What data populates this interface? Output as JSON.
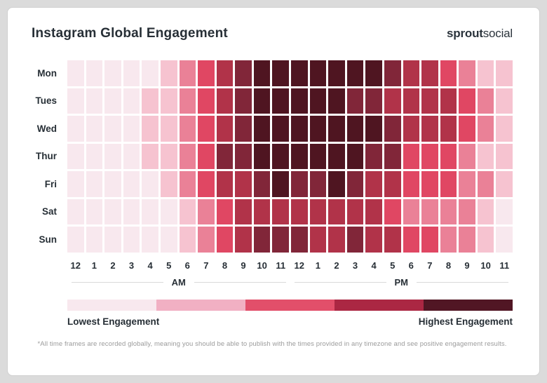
{
  "header": {
    "title": "Instagram Global Engagement",
    "logo_bold": "sprout",
    "logo_light": "social"
  },
  "axis": {
    "hours": [
      "12",
      "1",
      "2",
      "3",
      "4",
      "5",
      "6",
      "7",
      "8",
      "9",
      "10",
      "11",
      "12",
      "1",
      "2",
      "3",
      "4",
      "5",
      "6",
      "7",
      "8",
      "9",
      "10",
      "11"
    ],
    "am_label": "AM",
    "pm_label": "PM"
  },
  "legend": {
    "lowest_label": "Lowest Engagement",
    "highest_label": "Highest Engagement",
    "colors": [
      "#f8e8ee",
      "#f1b0c3",
      "#e24f6a",
      "#ab2743",
      "#511624"
    ]
  },
  "footnote": "*All time frames are recorded globally, meaning you should be able to publish with the times provided in any timezone and see positive engagement results.",
  "chart_data": {
    "type": "heatmap",
    "title": "Instagram Global Engagement",
    "rows": [
      "Mon",
      "Tues",
      "Wed",
      "Thur",
      "Fri",
      "Sat",
      "Sun"
    ],
    "columns": [
      "12am",
      "1am",
      "2am",
      "3am",
      "4am",
      "5am",
      "6am",
      "7am",
      "8am",
      "9am",
      "10am",
      "11am",
      "12pm",
      "1pm",
      "2pm",
      "3pm",
      "4pm",
      "5pm",
      "6pm",
      "7pm",
      "8pm",
      "9pm",
      "10pm",
      "11pm"
    ],
    "value_scale": "engagement level 1 (lowest) to 7 (highest)",
    "palette": [
      "#f8e8ee",
      "#f6c3d0",
      "#ea8197",
      "#e04763",
      "#b13349",
      "#812639",
      "#4f1521"
    ],
    "values": [
      [
        1,
        1,
        1,
        1,
        1,
        2,
        3,
        4,
        5,
        6,
        7,
        7,
        7,
        7,
        7,
        7,
        7,
        6,
        5,
        5,
        4,
        3,
        2,
        2
      ],
      [
        1,
        1,
        1,
        1,
        2,
        2,
        3,
        4,
        5,
        6,
        7,
        7,
        7,
        7,
        7,
        6,
        6,
        5,
        5,
        5,
        5,
        4,
        3,
        2
      ],
      [
        1,
        1,
        1,
        1,
        2,
        2,
        3,
        4,
        5,
        6,
        7,
        7,
        7,
        7,
        7,
        7,
        7,
        6,
        5,
        5,
        5,
        4,
        3,
        2
      ],
      [
        1,
        1,
        1,
        1,
        2,
        2,
        3,
        4,
        6,
        6,
        7,
        7,
        7,
        7,
        7,
        7,
        6,
        6,
        4,
        4,
        4,
        3,
        2,
        2
      ],
      [
        1,
        1,
        1,
        1,
        1,
        2,
        3,
        4,
        5,
        5,
        6,
        7,
        6,
        6,
        7,
        6,
        5,
        5,
        4,
        4,
        4,
        3,
        3,
        2
      ],
      [
        1,
        1,
        1,
        1,
        1,
        1,
        2,
        3,
        4,
        5,
        5,
        5,
        5,
        5,
        5,
        5,
        5,
        4,
        3,
        3,
        3,
        3,
        2,
        1
      ],
      [
        1,
        1,
        1,
        1,
        1,
        1,
        2,
        3,
        4,
        5,
        6,
        6,
        6,
        5,
        5,
        6,
        5,
        5,
        4,
        4,
        3,
        3,
        2,
        1
      ]
    ],
    "legend_labels": [
      "Lowest Engagement",
      "Highest Engagement"
    ]
  }
}
